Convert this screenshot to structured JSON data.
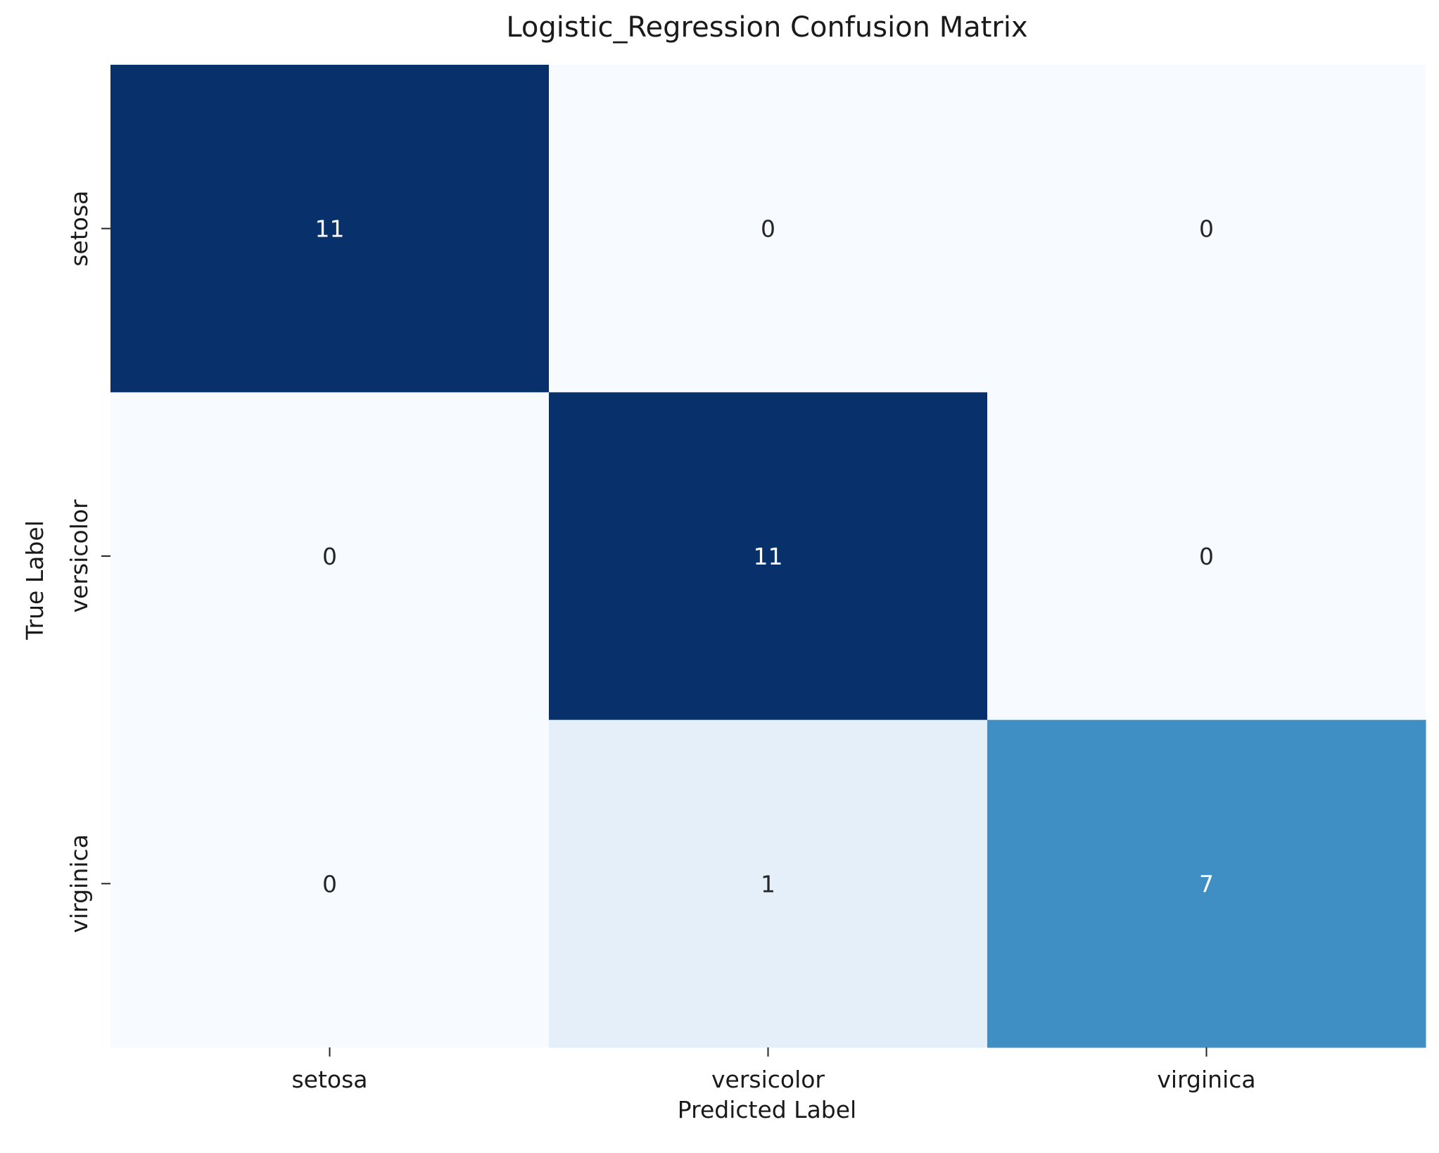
{
  "chart_data": {
    "type": "heatmap",
    "title": "Logistic_Regression Confusion Matrix",
    "xlabel": "Predicted Label",
    "ylabel": "True Label",
    "x_categories": [
      "setosa",
      "versicolor",
      "virginica"
    ],
    "y_categories": [
      "setosa",
      "versicolor",
      "virginica"
    ],
    "values": [
      [
        11,
        0,
        0
      ],
      [
        0,
        11,
        0
      ],
      [
        0,
        1,
        7
      ]
    ],
    "colormap": "Blues",
    "colorbar": false,
    "annotations": true
  }
}
